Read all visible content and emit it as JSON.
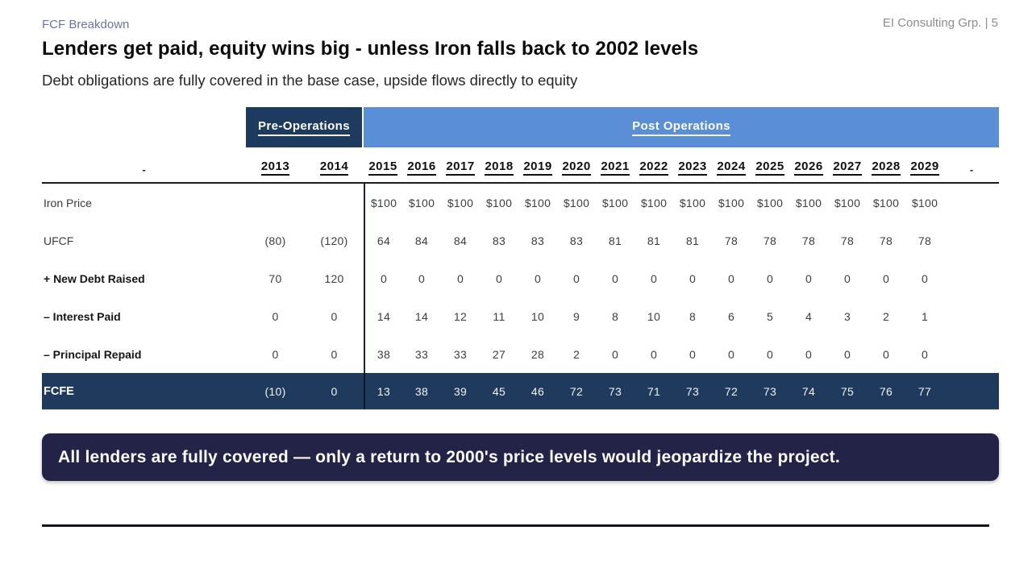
{
  "slide": {
    "eyebrow": "FCF Breakdown",
    "page_label": "EI Consulting Grp. | 5",
    "title": "Lenders get paid, equity wins big - unless Iron falls back to 2002 levels",
    "subtitle": "Debt obligations are fully covered in the base case, upside flows directly to equity",
    "callout": "All lenders are fully covered — only a return to 2000's price levels would jeopardize the project."
  },
  "table": {
    "pre_label": "Pre-Operations",
    "post_label": "Post Operations",
    "corner_dash": "-",
    "trailing_dash": "-",
    "pre_years": [
      "2013",
      "2014"
    ],
    "post_years": [
      "2015",
      "2016",
      "2017",
      "2018",
      "2019",
      "2020",
      "2021",
      "2022",
      "2023",
      "2024",
      "2025",
      "2026",
      "2027",
      "2028",
      "2029"
    ],
    "rows": [
      {
        "label": "Iron Price",
        "bold": false,
        "pre": [
          "",
          ""
        ],
        "post": [
          "$100",
          "$100",
          "$100",
          "$100",
          "$100",
          "$100",
          "$100",
          "$100",
          "$100",
          "$100",
          "$100",
          "$100",
          "$100",
          "$100",
          "$100"
        ]
      },
      {
        "label": "UFCF",
        "bold": false,
        "pre": [
          "(80)",
          "(120)"
        ],
        "post": [
          "64",
          "84",
          "84",
          "83",
          "83",
          "83",
          "81",
          "81",
          "81",
          "78",
          "78",
          "78",
          "78",
          "78",
          "78"
        ]
      },
      {
        "label": "+ New Debt Raised",
        "bold": true,
        "pre": [
          "70",
          "120"
        ],
        "post": [
          "0",
          "0",
          "0",
          "0",
          "0",
          "0",
          "0",
          "0",
          "0",
          "0",
          "0",
          "0",
          "0",
          "0",
          "0"
        ]
      },
      {
        "label": "– Interest Paid",
        "bold": true,
        "pre": [
          "0",
          "0"
        ],
        "post": [
          "14",
          "14",
          "12",
          "11",
          "10",
          "9",
          "8",
          "10",
          "8",
          "6",
          "5",
          "4",
          "3",
          "2",
          "1"
        ]
      },
      {
        "label": "– Principal Repaid",
        "bold": true,
        "pre": [
          "0",
          "0"
        ],
        "post": [
          "38",
          "33",
          "33",
          "27",
          "28",
          "2",
          "0",
          "0",
          "0",
          "0",
          "0",
          "0",
          "0",
          "0",
          "0"
        ]
      }
    ],
    "total_row": {
      "label": "FCFE",
      "pre": [
        "(10)",
        "0"
      ],
      "post": [
        "13",
        "38",
        "39",
        "45",
        "46",
        "72",
        "73",
        "71",
        "73",
        "72",
        "73",
        "74",
        "75",
        "76",
        "77"
      ]
    }
  },
  "colors": {
    "eyebrow": "#6b74a8",
    "page_label": "#8c8c8c",
    "pre_band_bg": "#1d3a5f",
    "post_band_bg": "#5a8ed6",
    "total_row_bg": "#1f3a5c",
    "callout_bg": "#222347"
  }
}
